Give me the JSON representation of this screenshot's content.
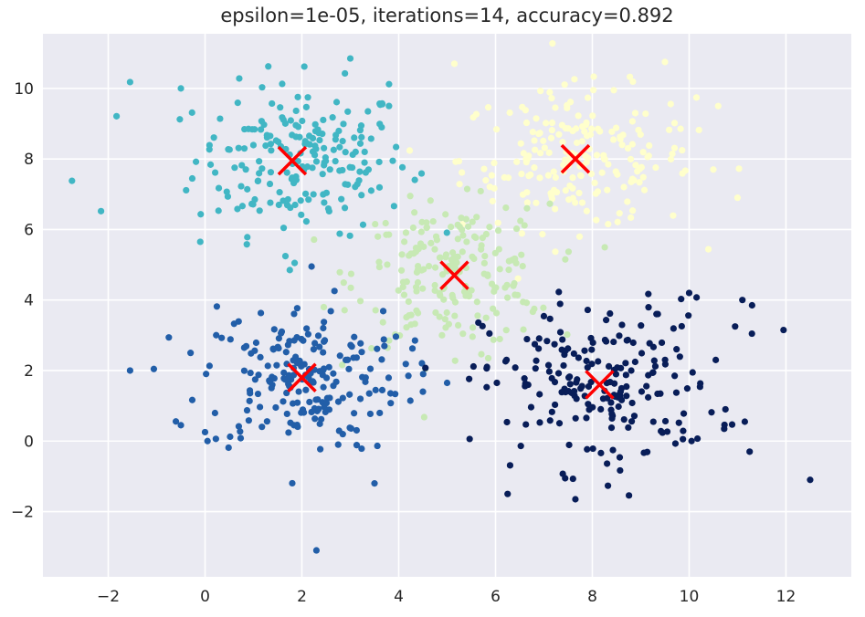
{
  "chart_data": {
    "type": "scatter",
    "title": "epsilon=1e-05, iterations=14, accuracy=0.892",
    "xlabel": "",
    "ylabel": "",
    "xlim": [
      -3.35,
      13.35
    ],
    "ylim": [
      -3.85,
      11.55
    ],
    "xticks": [
      -2,
      0,
      2,
      4,
      6,
      8,
      10,
      12
    ],
    "yticks": [
      -2,
      0,
      2,
      4,
      6,
      8,
      10
    ],
    "grid": true,
    "background": "#eaeaf2",
    "centroid_color": "#ff0000",
    "clusters": [
      {
        "color": "#41b6c4",
        "center": [
          2.0,
          8.0
        ],
        "spread": [
          1.1,
          1.05
        ],
        "n": 200,
        "outliers": [
          [
            -2.75,
            7.38
          ],
          [
            -2.15,
            6.52
          ],
          [
            -1.55,
            10.18
          ],
          [
            -0.5,
            10.0
          ],
          [
            -0.1,
            5.65
          ],
          [
            3.0,
            10.85
          ],
          [
            3.8,
            10.12
          ],
          [
            2.05,
            10.62
          ],
          [
            1.75,
            4.85
          ],
          [
            1.85,
            5.05
          ]
        ]
      },
      {
        "color": "#ffffcc",
        "center": [
          7.7,
          8.0
        ],
        "spread": [
          1.2,
          1.0
        ],
        "n": 200,
        "outliers": [
          [
            5.15,
            10.7
          ],
          [
            10.6,
            9.5
          ],
          [
            9.5,
            10.75
          ],
          [
            11.0,
            6.9
          ],
          [
            10.5,
            7.7
          ]
        ]
      },
      {
        "color": "#c7e9b4",
        "center": [
          5.1,
          4.7
        ],
        "spread": [
          1.0,
          1.0
        ],
        "n": 200,
        "outliers": [
          [
            4.3,
            6.05
          ],
          [
            6.65,
            6.6
          ],
          [
            3.8,
            2.85
          ],
          [
            5.85,
            2.35
          ],
          [
            4.55,
            2.05
          ],
          [
            6.8,
            3.75
          ]
        ]
      },
      {
        "color": "#225ea8",
        "center": [
          2.0,
          1.8
        ],
        "spread": [
          1.05,
          1.05
        ],
        "n": 200,
        "outliers": [
          [
            -1.55,
            2.0
          ],
          [
            -0.3,
            2.5
          ],
          [
            -0.5,
            0.45
          ],
          [
            0.05,
            0.0
          ],
          [
            2.3,
            -3.1
          ],
          [
            3.5,
            -1.2
          ],
          [
            4.5,
            1.4
          ],
          [
            4.2,
            1.85
          ],
          [
            5.0,
            1.65
          ],
          [
            2.2,
            4.95
          ]
        ]
      },
      {
        "color": "#081d58",
        "center": [
          8.15,
          1.6
        ],
        "spread": [
          1.2,
          1.2
        ],
        "n": 200,
        "outliers": [
          [
            12.5,
            -1.1
          ],
          [
            11.95,
            3.15
          ],
          [
            11.3,
            3.85
          ],
          [
            11.1,
            4.0
          ],
          [
            10.95,
            3.25
          ],
          [
            11.25,
            -0.3
          ],
          [
            10.75,
            0.9
          ],
          [
            10.05,
            0.0
          ],
          [
            10.0,
            4.2
          ],
          [
            10.55,
            2.3
          ],
          [
            6.25,
            -1.5
          ],
          [
            7.65,
            -1.65
          ],
          [
            11.15,
            0.55
          ]
        ]
      }
    ],
    "centroids": [
      [
        1.8,
        7.95
      ],
      [
        7.65,
        8.0
      ],
      [
        5.15,
        4.7
      ],
      [
        2.0,
        1.8
      ],
      [
        8.15,
        1.6
      ]
    ]
  }
}
